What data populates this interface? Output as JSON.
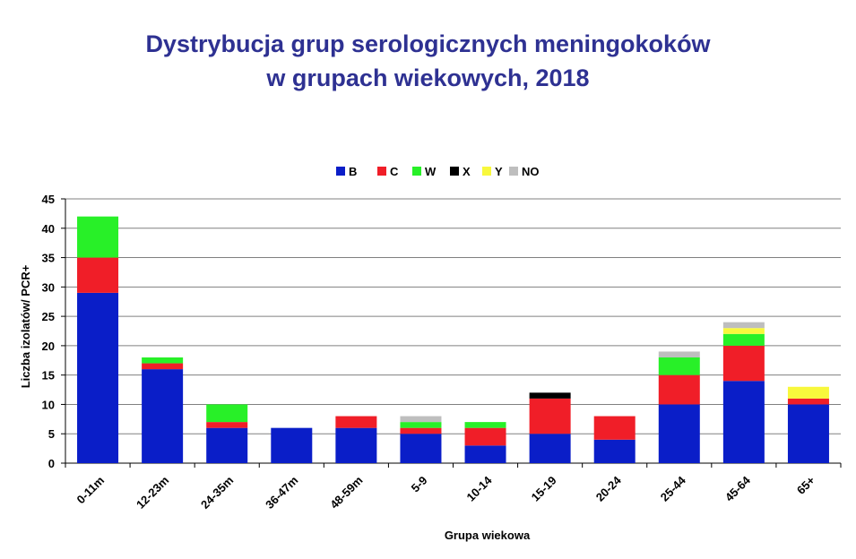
{
  "chart_data": {
    "type": "bar",
    "stacked": true,
    "title_line1": "Dystrybucja grup serologicznych meningokoków",
    "title_line2": "w grupach wiekowych, 2018",
    "xlabel": "Grupa wiekowa",
    "ylabel": "Liczba izolatów/ PCR+",
    "ylim": [
      0,
      45
    ],
    "yticks": [
      0,
      5,
      10,
      15,
      20,
      25,
      30,
      35,
      40,
      45
    ],
    "grid": true,
    "legend_position": "top",
    "categories": [
      "0-11m",
      "12-23m",
      "24-35m",
      "36-47m",
      "48-59m",
      "5-9",
      "10-14",
      "15-19",
      "20-24",
      "25-44",
      "45-64",
      "65+"
    ],
    "series": [
      {
        "name": "B",
        "color": "#0a1ec8",
        "values": [
          29,
          16,
          6,
          6,
          6,
          5,
          3,
          5,
          4,
          10,
          14,
          10
        ]
      },
      {
        "name": "C",
        "color": "#f01e28",
        "values": [
          6,
          1,
          1,
          0,
          2,
          1,
          3,
          6,
          4,
          5,
          6,
          1
        ]
      },
      {
        "name": "W",
        "color": "#28f028",
        "values": [
          7,
          1,
          3,
          0,
          0,
          1,
          1,
          0,
          0,
          3,
          2,
          0
        ]
      },
      {
        "name": "X",
        "color": "#000000",
        "values": [
          0,
          0,
          0,
          0,
          0,
          0,
          0,
          1,
          0,
          0,
          0,
          0
        ]
      },
      {
        "name": "Y",
        "color": "#f8f83c",
        "values": [
          0,
          0,
          0,
          0,
          0,
          0,
          0,
          0,
          0,
          0,
          1,
          2
        ]
      },
      {
        "name": "NO",
        "color": "#bebebe",
        "values": [
          0,
          0,
          0,
          0,
          0,
          1,
          0,
          0,
          0,
          1,
          1,
          0
        ]
      }
    ]
  }
}
